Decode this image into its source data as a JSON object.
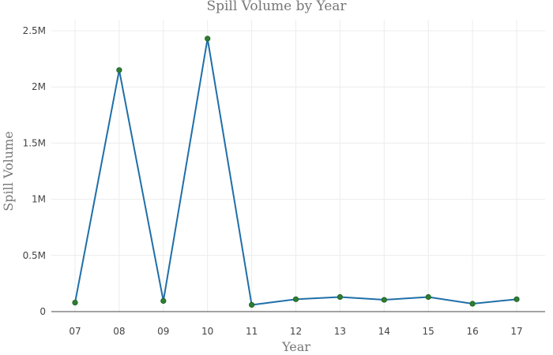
{
  "chart_data": {
    "type": "line",
    "title": "Spill Volume by Year",
    "xlabel": "Year",
    "ylabel": "Spill Volume",
    "categories": [
      "07",
      "08",
      "09",
      "10",
      "11",
      "12",
      "13",
      "14",
      "15",
      "16",
      "17"
    ],
    "series": [
      {
        "values": [
          80000,
          2150000,
          95000,
          2430000,
          60000,
          110000,
          130000,
          105000,
          130000,
          70000,
          110000
        ]
      }
    ],
    "ylim": [
      0,
      2500000
    ],
    "yticks": [
      0,
      500000,
      1000000,
      1500000,
      2000000,
      2500000
    ],
    "ytick_labels": [
      "0",
      "0.5M",
      "1M",
      "1.5M",
      "2M",
      "2.5M"
    ],
    "grid": true,
    "legend": "none",
    "colors": {
      "line": "#1f6fa8",
      "marker": "#2e7d32",
      "grid": "#ececec",
      "axis": "#444444",
      "text": "#777777"
    }
  }
}
